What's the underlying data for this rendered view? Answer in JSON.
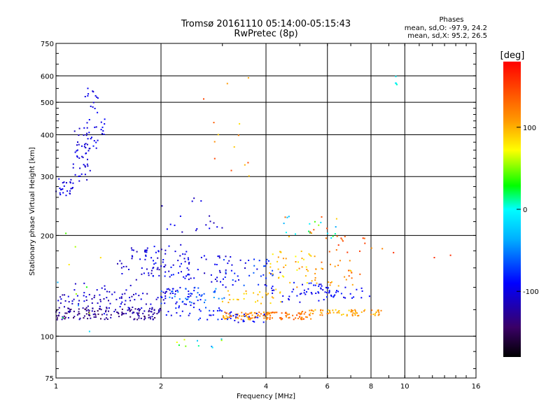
{
  "chart_data": {
    "type": "scatter",
    "title": "Tromsø 20161110 05:14:00-05:15:43",
    "subtitle": "RwPretec (8p)",
    "xlabel": "Frequency [MHz]",
    "ylabel": "Stationary phase Virtual Height [km]",
    "xscale": "log",
    "yscale": "log",
    "xlim": [
      1,
      16
    ],
    "ylim": [
      75,
      750
    ],
    "xticks": [
      {
        "v": 1,
        "label": "1"
      },
      {
        "v": 2,
        "label": "2"
      },
      {
        "v": 4,
        "label": "4"
      },
      {
        "v": 6,
        "label": "6"
      },
      {
        "v": 8,
        "label": "8"
      },
      {
        "v": 10,
        "label": "10"
      },
      {
        "v": 16,
        "label": "16"
      }
    ],
    "yticks": [
      {
        "v": 75,
        "label": "75"
      },
      {
        "v": 100,
        "label": "100"
      },
      {
        "v": 200,
        "label": "200"
      },
      {
        "v": 300,
        "label": "300"
      },
      {
        "v": 400,
        "label": "400"
      },
      {
        "v": 500,
        "label": "500"
      },
      {
        "v": 600,
        "label": "600"
      },
      {
        "v": 750,
        "label": "750"
      }
    ],
    "grid": true,
    "stats": {
      "heading": "Phases",
      "o_line": "mean, sd,O: -97.9, 24.2",
      "x_line": "mean, sd,X:  95.2, 26.5"
    },
    "colorbar": {
      "label": "[deg]",
      "min": -180,
      "max": 180,
      "ticks": [
        {
          "v": 100,
          "label": "100"
        },
        {
          "v": 0,
          "label": "0"
        },
        {
          "v": -100,
          "label": "-100"
        }
      ]
    },
    "clusters": [
      {
        "x": [
          1.0,
          1.12
        ],
        "y": [
          260,
          300
        ],
        "phase": [
          -110,
          -90
        ],
        "n": 25
      },
      {
        "x": [
          1.12,
          1.26
        ],
        "y": [
          290,
          420
        ],
        "phase": [
          -115,
          -95
        ],
        "n": 45
      },
      {
        "x": [
          1.2,
          1.32
        ],
        "y": [
          380,
          560
        ],
        "phase": [
          -110,
          -90
        ],
        "n": 25
      },
      {
        "x": [
          1.28,
          1.38
        ],
        "y": [
          360,
          470
        ],
        "phase": [
          -105,
          -85
        ],
        "n": 12
      },
      {
        "x": [
          1.0,
          2.0
        ],
        "y": [
          112,
          122
        ],
        "phase": [
          -150,
          -110
        ],
        "n": 140
      },
      {
        "x": [
          1.0,
          2.1
        ],
        "y": [
          118,
          135
        ],
        "phase": [
          -125,
          -95
        ],
        "n": 70
      },
      {
        "x": [
          1.1,
          1.7
        ],
        "y": [
          125,
          145
        ],
        "phase": [
          -120,
          -95
        ],
        "n": 25
      },
      {
        "x": [
          1.5,
          2.1
        ],
        "y": [
          145,
          185
        ],
        "phase": [
          -120,
          -95
        ],
        "n": 40
      },
      {
        "x": [
          1.8,
          2.4
        ],
        "y": [
          150,
          190
        ],
        "phase": [
          -110,
          -80
        ],
        "n": 45
      },
      {
        "x": [
          2.0,
          2.6
        ],
        "y": [
          115,
          140
        ],
        "phase": [
          -110,
          -80
        ],
        "n": 50
      },
      {
        "x": [
          2.0,
          3.1
        ],
        "y": [
          125,
          140
        ],
        "phase": [
          -80,
          -40
        ],
        "n": 35
      },
      {
        "x": [
          2.3,
          3.2
        ],
        "y": [
          145,
          175
        ],
        "phase": [
          -115,
          -85
        ],
        "n": 40
      },
      {
        "x": [
          2.5,
          3.2
        ],
        "y": [
          112,
          122
        ],
        "phase": [
          -100,
          -60
        ],
        "n": 25
      },
      {
        "x": [
          3.0,
          4.2
        ],
        "y": [
          112,
          118
        ],
        "phase": [
          90,
          140
        ],
        "n": 70
      },
      {
        "x": [
          3.0,
          4.6
        ],
        "y": [
          125,
          140
        ],
        "phase": [
          80,
          110
        ],
        "n": 30
      },
      {
        "x": [
          3.0,
          4.4
        ],
        "y": [
          140,
          170
        ],
        "phase": [
          -110,
          -60
        ],
        "n": 40
      },
      {
        "x": [
          3.2,
          4.0
        ],
        "y": [
          110,
          117
        ],
        "phase": [
          -110,
          -80
        ],
        "n": 20
      },
      {
        "x": [
          4.0,
          5.4
        ],
        "y": [
          112,
          118
        ],
        "phase": [
          105,
          150
        ],
        "n": 50
      },
      {
        "x": [
          4.0,
          5.6
        ],
        "y": [
          140,
          180
        ],
        "phase": [
          70,
          120
        ],
        "n": 45
      },
      {
        "x": [
          4.0,
          6.0
        ],
        "y": [
          125,
          145
        ],
        "phase": [
          -105,
          -80
        ],
        "n": 35
      },
      {
        "x": [
          5.0,
          8.6
        ],
        "y": [
          115,
          120
        ],
        "phase": [
          85,
          130
        ],
        "n": 70
      },
      {
        "x": [
          5.0,
          8.0
        ],
        "y": [
          130,
          140
        ],
        "phase": [
          -100,
          -80
        ],
        "n": 35
      },
      {
        "x": [
          5.5,
          7.5
        ],
        "y": [
          140,
          170
        ],
        "phase": [
          90,
          140
        ],
        "n": 25
      },
      {
        "x": [
          4.5,
          6.5
        ],
        "y": [
          195,
          230
        ],
        "phase": [
          -40,
          160
        ],
        "n": 25
      },
      {
        "x": [
          2.0,
          3.0
        ],
        "y": [
          200,
          260
        ],
        "phase": [
          -120,
          -90
        ],
        "n": 18
      },
      {
        "x": [
          6.0,
          9.0
        ],
        "y": [
          175,
          200
        ],
        "phase": [
          110,
          160
        ],
        "n": 15
      },
      {
        "x": [
          2.6,
          4.4
        ],
        "y": [
          300,
          650
        ],
        "phase": [
          80,
          150
        ],
        "n": 14
      },
      {
        "x": [
          1.0,
          1.4
        ],
        "y": [
          80,
          210
        ],
        "phase": [
          -110,
          120
        ],
        "n": 12
      },
      {
        "x": [
          2.2,
          3.1
        ],
        "y": [
          92,
          98
        ],
        "phase": [
          -60,
          80
        ],
        "n": 10
      },
      {
        "x": [
          9.4,
          9.6
        ],
        "y": [
          550,
          600
        ],
        "phase": [
          -20,
          10
        ],
        "n": 5
      },
      {
        "x": [
          9.0,
          14.0
        ],
        "y": [
          150,
          200
        ],
        "phase": [
          140,
          160
        ],
        "n": 3
      }
    ]
  }
}
